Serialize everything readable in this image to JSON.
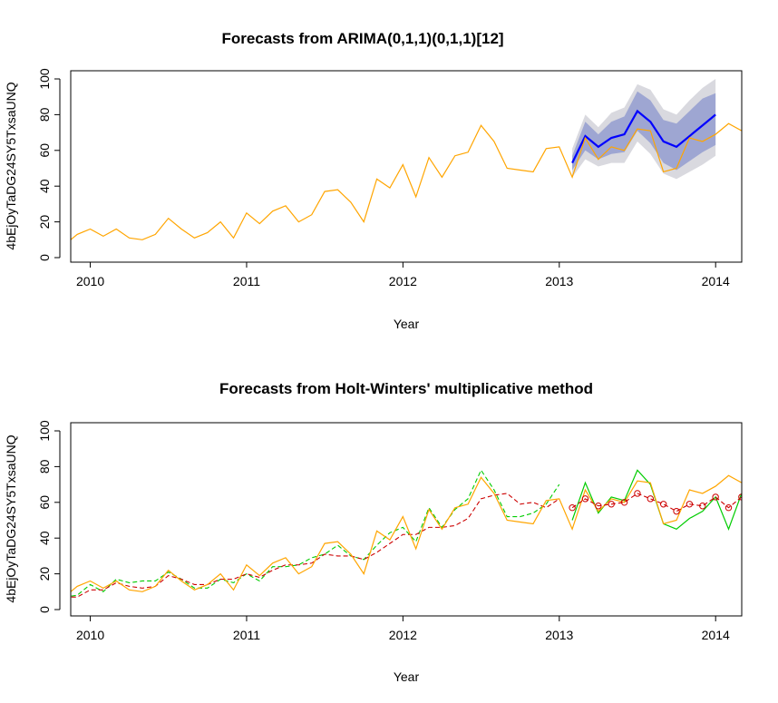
{
  "chart_data": [
    {
      "type": "line",
      "title": "Forecasts from ARIMA(0,1,1)(0,1,1)[12]",
      "xlabel": "Year",
      "ylabel": "4bEjOyTaDG24SY5TxsaUNQ",
      "xlim": [
        2009.875,
        2014.167
      ],
      "ylim": [
        0,
        100
      ],
      "x_ticks": [
        2010,
        2011,
        2012,
        2013,
        2014
      ],
      "y_ticks": [
        0,
        20,
        40,
        60,
        80,
        100
      ],
      "colors": {
        "actual": "#FFA500",
        "forecast": "#0000FF",
        "band80": "#9EA6D2",
        "band95": "#D9D9DF"
      },
      "actual": {
        "start": 2009.833,
        "step": 0.08333,
        "values": [
          7,
          13,
          16,
          12,
          16,
          11,
          10,
          13,
          22,
          16,
          11,
          14,
          20,
          11,
          25,
          19,
          26,
          29,
          20,
          24,
          37,
          38,
          31,
          20,
          44,
          39,
          52,
          34,
          56,
          45,
          57,
          59,
          74,
          65,
          50,
          49,
          48,
          61,
          62,
          45,
          67,
          55,
          62,
          60,
          72,
          71,
          48,
          50,
          67,
          65,
          69,
          75,
          71
        ]
      },
      "forecast": {
        "start": 2013.083,
        "step": 0.08333,
        "mean": [
          53,
          68,
          62,
          67,
          69,
          82,
          76,
          65,
          62,
          68,
          74,
          80
        ],
        "lo80": [
          49,
          60,
          55,
          58,
          59,
          71,
          64,
          53,
          49,
          54,
          59,
          63
        ],
        "hi80": [
          57,
          76,
          69,
          76,
          79,
          93,
          88,
          77,
          75,
          82,
          89,
          92
        ],
        "lo95": [
          45,
          55,
          51,
          53,
          53,
          65,
          58,
          47,
          44,
          48,
          52,
          57
        ],
        "hi95": [
          61,
          80,
          73,
          81,
          84,
          97,
          94,
          83,
          80,
          88,
          95,
          100
        ]
      }
    },
    {
      "type": "line",
      "title": "Forecasts from Holt-Winters' multiplicative method",
      "xlabel": "Year",
      "ylabel": "4bEjOyTaDG24SY5TxsaUNQ",
      "xlim": [
        2009.875,
        2014.167
      ],
      "ylim": [
        0,
        100
      ],
      "x_ticks": [
        2010,
        2011,
        2012,
        2013,
        2014
      ],
      "y_ticks": [
        0,
        20,
        40,
        60,
        80,
        100
      ],
      "colors": {
        "actual": "#FFA500",
        "green": "#00CC00",
        "red": "#CC0000"
      },
      "actual": {
        "start": 2009.833,
        "step": 0.08333,
        "values": [
          7,
          13,
          16,
          12,
          16,
          11,
          10,
          13,
          22,
          16,
          11,
          14,
          20,
          11,
          25,
          19,
          26,
          29,
          20,
          24,
          37,
          38,
          31,
          20,
          44,
          39,
          52,
          34,
          56,
          45,
          57,
          59,
          74,
          65,
          50,
          49,
          48,
          61,
          62,
          45,
          67,
          55,
          62,
          60,
          72,
          71,
          48,
          50,
          67,
          65,
          69,
          75,
          71
        ]
      },
      "green_dashed": {
        "start": 2009.833,
        "step": 0.08333,
        "values": [
          7,
          8,
          14,
          10,
          17,
          15,
          16,
          16,
          21,
          17,
          12,
          12,
          17,
          15,
          20,
          16,
          24,
          24,
          25,
          29,
          31,
          36,
          30,
          28,
          36,
          43,
          46,
          38,
          57,
          46,
          56,
          62,
          78,
          67,
          52,
          52,
          54,
          59,
          70
        ]
      },
      "red_dashed": {
        "start": 2009.833,
        "step": 0.08333,
        "values": [
          7,
          7,
          11,
          11,
          15,
          13,
          12,
          13,
          19,
          17,
          14,
          14,
          17,
          17,
          20,
          18,
          22,
          25,
          25,
          26,
          31,
          30,
          30,
          28,
          32,
          37,
          42,
          42,
          46,
          46,
          47,
          51,
          62,
          64,
          65,
          59,
          60,
          57,
          62
        ]
      },
      "green_forecast": {
        "start": 2013.083,
        "step": 0.08333,
        "values": [
          50,
          71,
          54,
          63,
          61,
          78,
          70,
          48,
          45,
          51,
          55,
          63,
          45,
          65
        ]
      },
      "red_forecast": {
        "start": 2013.083,
        "step": 0.08333,
        "values": [
          57,
          62,
          58,
          59,
          60,
          65,
          62,
          59,
          55,
          59,
          58,
          63,
          57,
          63
        ]
      }
    }
  ]
}
